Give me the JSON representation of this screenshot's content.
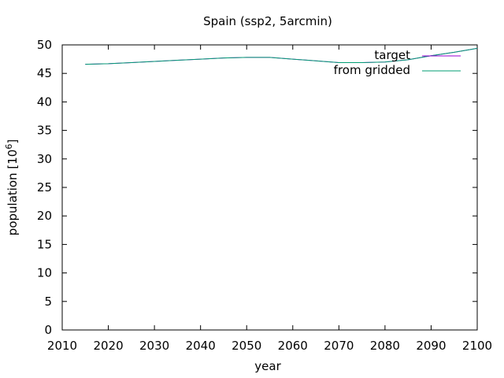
{
  "chart_data": {
    "type": "line",
    "title": "Spain (ssp2, 5arcmin)",
    "xlabel": "year",
    "ylabel_prefix": "population [10",
    "ylabel_exp": "6",
    "ylabel_suffix": "]",
    "xlim": [
      2010,
      2100
    ],
    "ylim": [
      0,
      50
    ],
    "xticks": [
      2010,
      2020,
      2030,
      2040,
      2050,
      2060,
      2070,
      2080,
      2090,
      2100
    ],
    "yticks": [
      0,
      5,
      10,
      15,
      20,
      25,
      30,
      35,
      40,
      45,
      50
    ],
    "grid": false,
    "legend_position": "top-right",
    "series": [
      {
        "name": "target",
        "color": "#9400d3",
        "x": [
          2015,
          2020,
          2025,
          2030,
          2035,
          2040,
          2045,
          2050,
          2055,
          2060,
          2065,
          2070,
          2075,
          2080,
          2085,
          2090,
          2095,
          2100
        ],
        "y": [
          46.6,
          46.7,
          46.9,
          47.1,
          47.3,
          47.5,
          47.7,
          47.8,
          47.8,
          47.5,
          47.2,
          46.9,
          46.9,
          47.0,
          47.4,
          48.1,
          48.7,
          49.4
        ]
      },
      {
        "name": "from gridded",
        "color": "#009e73",
        "x": [
          2015,
          2020,
          2025,
          2030,
          2035,
          2040,
          2045,
          2050,
          2055,
          2060,
          2065,
          2070,
          2075,
          2080,
          2085,
          2090,
          2095,
          2100
        ],
        "y": [
          46.6,
          46.7,
          46.9,
          47.1,
          47.3,
          47.5,
          47.7,
          47.8,
          47.8,
          47.5,
          47.2,
          46.9,
          46.9,
          47.0,
          47.4,
          48.1,
          48.7,
          49.4
        ]
      }
    ]
  }
}
